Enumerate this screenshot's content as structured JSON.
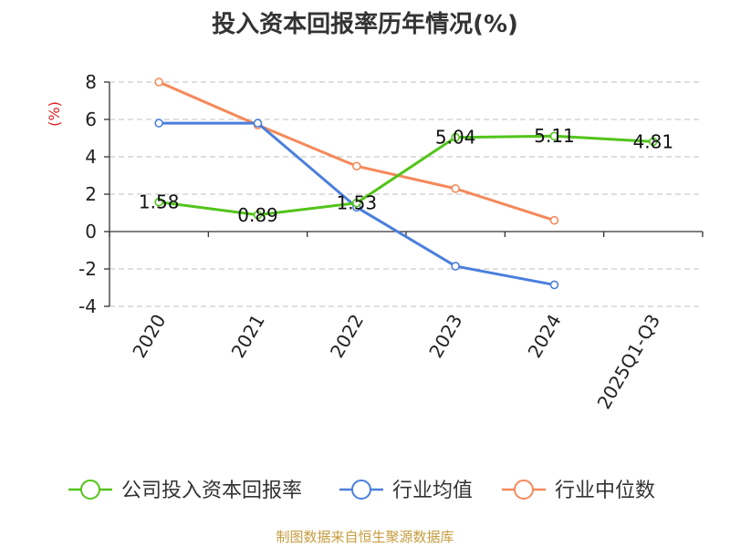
{
  "chart_data": {
    "type": "line",
    "title": "投入资本回报率历年情况(%)",
    "ylabel": "(%)",
    "categories": [
      "2020",
      "2021",
      "2022",
      "2023",
      "2024",
      "2025Q1-Q3"
    ],
    "ylim": [
      -4,
      8
    ],
    "yticks": [
      "8",
      "6",
      "4",
      "2",
      "0",
      "-2",
      "-4"
    ],
    "grid": true,
    "legend_position": "bottom",
    "series": [
      {
        "name": "公司投入资本回报率",
        "color": "#52c41a",
        "values": [
          1.58,
          0.89,
          1.53,
          5.04,
          5.11,
          4.81
        ],
        "labels": [
          "1.58",
          "0.89",
          "1.53",
          "5.04",
          "5.11",
          "4.81"
        ]
      },
      {
        "name": "行业均值",
        "color": "#4a7fdc",
        "values": [
          5.8,
          5.8,
          1.3,
          -1.85,
          -2.85,
          null
        ]
      },
      {
        "name": "行业中位数",
        "color": "#f5895a",
        "values": [
          8.0,
          5.7,
          3.5,
          2.3,
          0.6,
          null
        ]
      }
    ]
  },
  "footer": "制图数据来自恒生聚源数据库",
  "colors": {
    "ylabel": "#e02020",
    "footer": "#c69c3e",
    "grid": "#cccccc"
  }
}
